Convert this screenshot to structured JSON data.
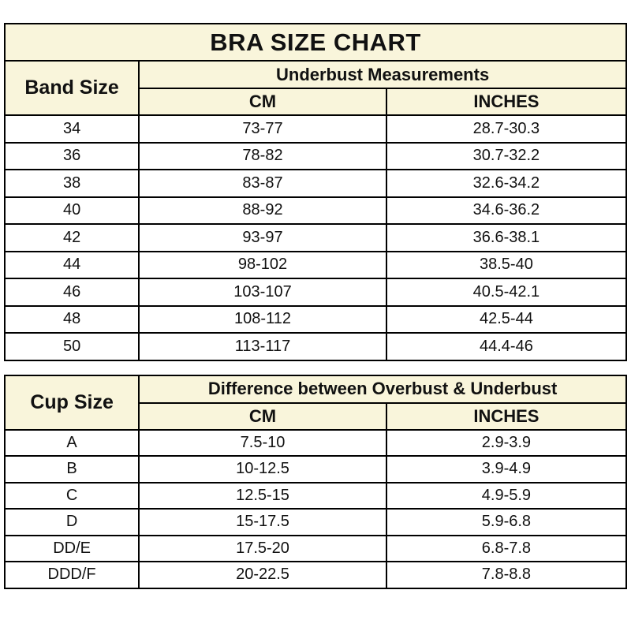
{
  "colors": {
    "header_bg": "#f9f5db",
    "row_bg": "#ffffff",
    "border": "#000000",
    "text": "#111111"
  },
  "chart_data": [
    {
      "type": "table",
      "title": "BRA SIZE CHART",
      "corner_header": "Band Size",
      "group_header": "Underbust Measurements",
      "columns": [
        "CM",
        "INCHES"
      ],
      "rows": [
        [
          "34",
          "73-77",
          "28.7-30.3"
        ],
        [
          "36",
          "78-82",
          "30.7-32.2"
        ],
        [
          "38",
          "83-87",
          "32.6-34.2"
        ],
        [
          "40",
          "88-92",
          "34.6-36.2"
        ],
        [
          "42",
          "93-97",
          "36.6-38.1"
        ],
        [
          "44",
          "98-102",
          "38.5-40"
        ],
        [
          "46",
          "103-107",
          "40.5-42.1"
        ],
        [
          "48",
          "108-112",
          "42.5-44"
        ],
        [
          "50",
          "113-117",
          "44.4-46"
        ]
      ]
    },
    {
      "type": "table",
      "corner_header": "Cup Size",
      "group_header": "Difference between Overbust & Underbust",
      "columns": [
        "CM",
        "INCHES"
      ],
      "rows": [
        [
          "A",
          "7.5-10",
          "2.9-3.9"
        ],
        [
          "B",
          "10-12.5",
          "3.9-4.9"
        ],
        [
          "C",
          "12.5-15",
          "4.9-5.9"
        ],
        [
          "D",
          "15-17.5",
          "5.9-6.8"
        ],
        [
          "DD/E",
          "17.5-20",
          "6.8-7.8"
        ],
        [
          "DDD/F",
          "20-22.5",
          "7.8-8.8"
        ]
      ]
    }
  ]
}
